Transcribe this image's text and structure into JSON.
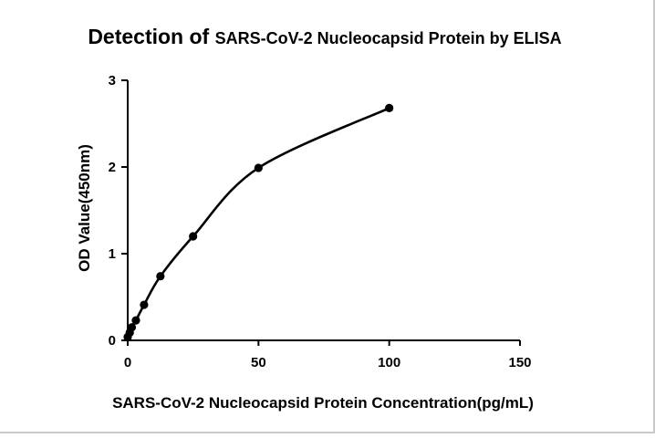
{
  "chart_data": {
    "type": "scatter",
    "title": "Detection of SARS-CoV-2 Nucleocapsid Protein by ELISA",
    "title_parts": [
      "Detection of ",
      "SARS-CoV-2 Nucleocapsid Protein by ELISA"
    ],
    "xlabel": "SARS-CoV-2 Nucleocapsid Protein Concentration(pg/mL)",
    "ylabel": "OD Value(450nm)",
    "xlim": [
      0,
      150
    ],
    "ylim": [
      0,
      3
    ],
    "x_ticks": [
      "0",
      "50",
      "100",
      "150"
    ],
    "y_ticks": [
      "0",
      "1",
      "2",
      "3"
    ],
    "x_tick_values": [
      0,
      50,
      100,
      150
    ],
    "y_tick_values": [
      0,
      1,
      2,
      3
    ],
    "grid": false,
    "legend": "none",
    "series": [
      {
        "x": [
          0,
          0.78,
          1.56,
          3.13,
          6.25,
          12.5,
          25,
          50,
          100
        ],
        "y": [
          0.04,
          0.09,
          0.15,
          0.23,
          0.41,
          0.74,
          1.2,
          1.99,
          2.68
        ],
        "marker": "circle",
        "fit": "curve",
        "color": "#000000"
      }
    ]
  }
}
